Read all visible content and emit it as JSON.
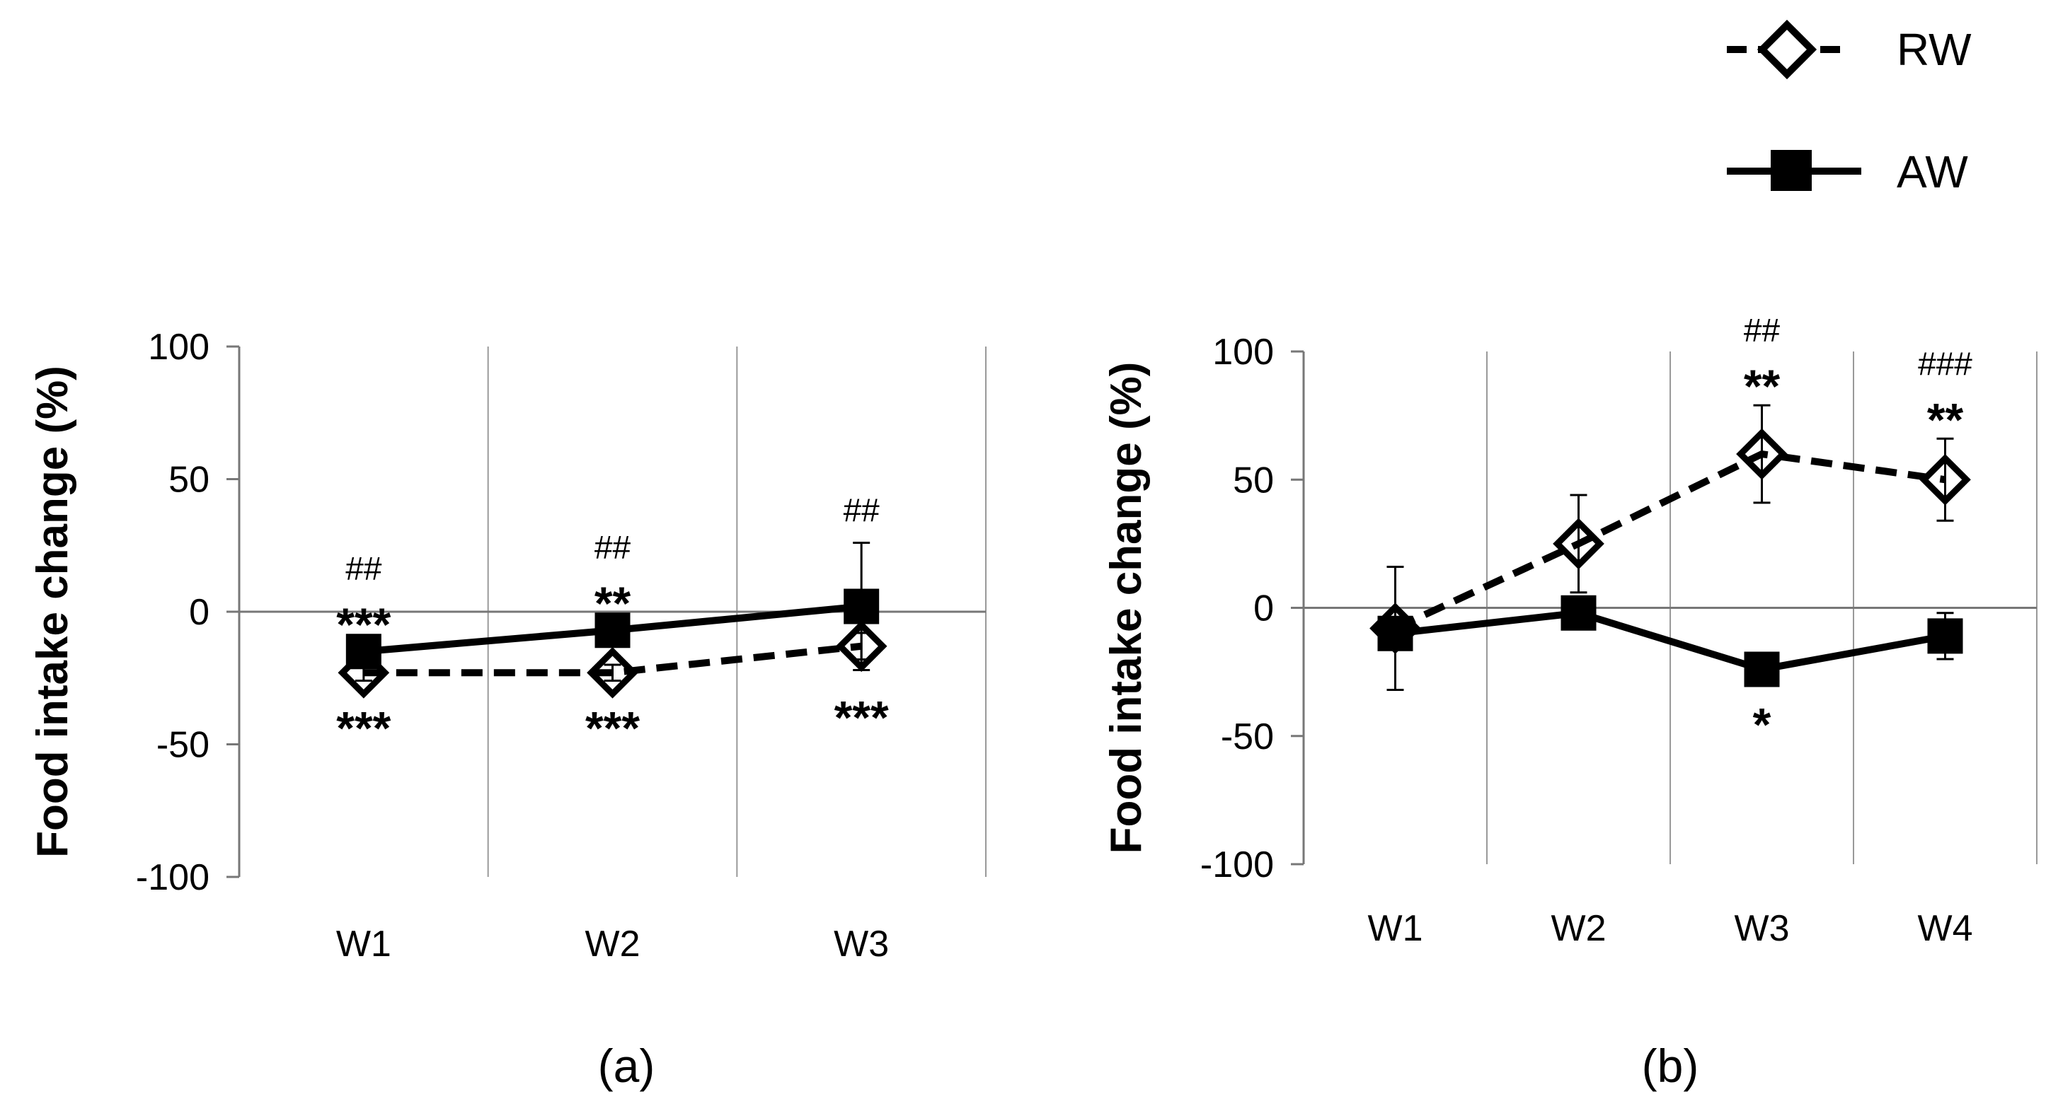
{
  "legend": [
    {
      "name": "RW",
      "marker": "diamond-open",
      "line": "dashed"
    },
    {
      "name": "AW",
      "marker": "square-filled",
      "line": "solid"
    }
  ],
  "chart_data": [
    {
      "type": "line",
      "panel_label": "(a)",
      "ylabel": "Food intake change (%)",
      "ylim": [
        -100,
        100
      ],
      "yticks": [
        "100",
        "50",
        "0",
        "-50",
        "-100"
      ],
      "categories": [
        "W1",
        "W2",
        "W3"
      ],
      "series": [
        {
          "name": "AW",
          "values": [
            -15,
            -7,
            2
          ],
          "error": [
            3,
            3,
            24
          ]
        },
        {
          "name": "RW",
          "values": [
            -23,
            -23,
            -13
          ],
          "error": [
            3,
            3,
            5
          ]
        }
      ],
      "annotations_above": [
        [
          "##",
          "***"
        ],
        [
          "##",
          "**"
        ],
        [
          "##"
        ]
      ],
      "annotations_below": [
        "***",
        "***",
        "***"
      ]
    },
    {
      "type": "line",
      "panel_label": "(b)",
      "ylabel": "Food intake change (%)",
      "ylim": [
        -100,
        100
      ],
      "yticks": [
        "100",
        "50",
        "0",
        "-50",
        "-100"
      ],
      "categories": [
        "W1",
        "W2",
        "W3",
        "W4"
      ],
      "series": [
        {
          "name": "AW",
          "values": [
            -10,
            -2,
            -24,
            -11
          ],
          "error": [
            3,
            3,
            3,
            9
          ]
        },
        {
          "name": "RW",
          "values": [
            -8,
            25,
            60,
            50
          ],
          "error": [
            24,
            19,
            19,
            16
          ]
        }
      ],
      "annotations_above": [
        [],
        [],
        [
          "##",
          "**"
        ],
        [
          "###",
          "**"
        ]
      ],
      "annotations_below": [
        "",
        "",
        "*",
        ""
      ]
    }
  ]
}
